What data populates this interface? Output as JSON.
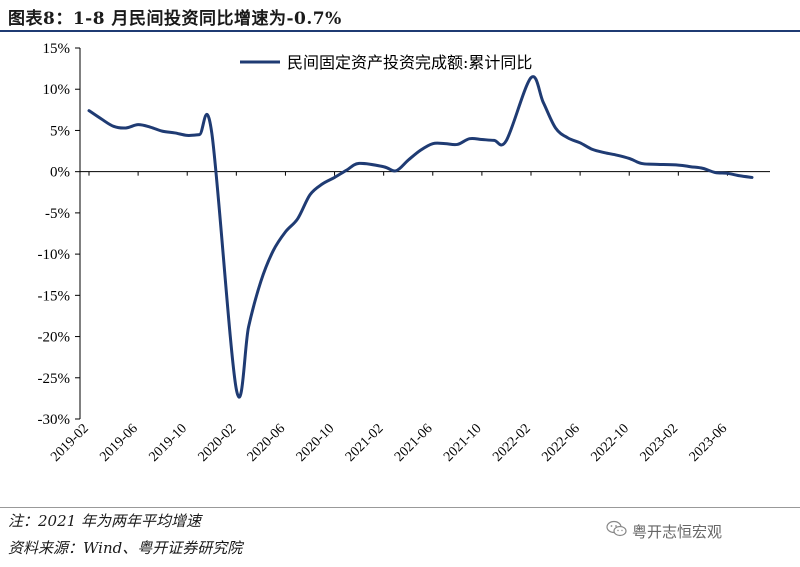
{
  "title": "图表8：1-8 月民间投资同比增速为-0.7%",
  "footnote": "注：2021 年为两年平均增速",
  "source": "资料来源：Wind、粤开证券研究院",
  "watermark": "粤开志恒宏观",
  "chart_data": {
    "type": "line",
    "ylim": [
      -30,
      15
    ],
    "yticks": [
      15,
      10,
      5,
      0,
      -5,
      -10,
      -15,
      -20,
      -25,
      -30
    ],
    "ytick_labels": [
      "15%",
      "10%",
      "5%",
      "0%",
      "-5%",
      "-10%",
      "-15%",
      "-20%",
      "-25%",
      "-30%"
    ],
    "xtick_labels": [
      "2019-02",
      "2019-06",
      "2019-10",
      "2020-02",
      "2020-06",
      "2020-10",
      "2021-02",
      "2021-06",
      "2021-10",
      "2022-02",
      "2022-06",
      "2022-10",
      "2023-02",
      "2023-06"
    ],
    "legend_position": "top-right",
    "line_color": "#1f3b73",
    "series": [
      {
        "name": "民间固定资产投资完成额:累计同比",
        "x": [
          "2019-02",
          "2019-03",
          "2019-04",
          "2019-05",
          "2019-06",
          "2019-07",
          "2019-08",
          "2019-09",
          "2019-10",
          "2019-11",
          "2019-12",
          "2020-02",
          "2020-03",
          "2020-04",
          "2020-05",
          "2020-06",
          "2020-07",
          "2020-08",
          "2020-09",
          "2020-10",
          "2020-11",
          "2020-12",
          "2021-02",
          "2021-03",
          "2021-04",
          "2021-05",
          "2021-06",
          "2021-07",
          "2021-08",
          "2021-09",
          "2021-10",
          "2021-11",
          "2021-12",
          "2022-02",
          "2022-03",
          "2022-04",
          "2022-05",
          "2022-06",
          "2022-07",
          "2022-08",
          "2022-09",
          "2022-10",
          "2022-11",
          "2022-12",
          "2023-02",
          "2023-03",
          "2023-04",
          "2023-05",
          "2023-06",
          "2023-07",
          "2023-08"
        ],
        "values": [
          7.4,
          6.4,
          5.5,
          5.3,
          5.7,
          5.4,
          4.9,
          4.7,
          4.4,
          4.5,
          4.7,
          -26.4,
          -18.8,
          -13.3,
          -9.6,
          -7.3,
          -5.7,
          -2.8,
          -1.5,
          -0.7,
          0.2,
          1.0,
          0.6,
          0.1,
          1.4,
          2.6,
          3.4,
          3.4,
          3.3,
          4.0,
          3.9,
          3.8,
          3.8,
          11.4,
          8.4,
          5.3,
          4.1,
          3.5,
          2.7,
          2.3,
          2.0,
          1.6,
          1.0,
          0.9,
          0.8,
          0.6,
          0.4,
          -0.1,
          -0.2,
          -0.5,
          -0.7
        ]
      }
    ]
  }
}
